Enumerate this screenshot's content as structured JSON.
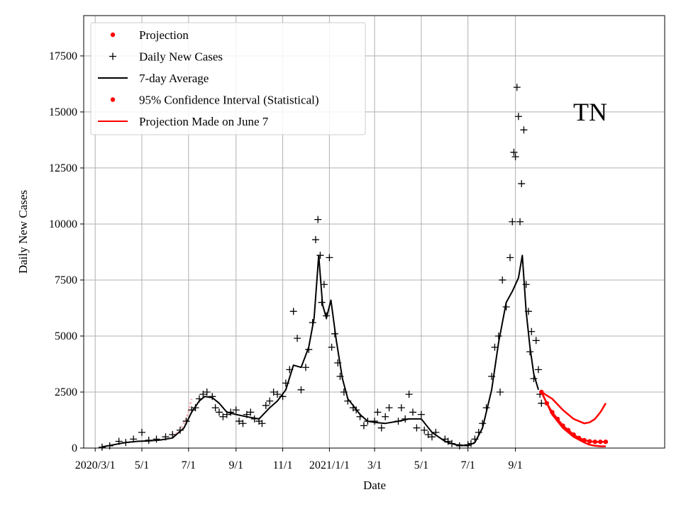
{
  "chart_data": {
    "type": "scatter",
    "panel_label": "TN",
    "xlabel": "Date",
    "ylabel": "Daily New Cases",
    "grid": true,
    "legend_position": "top-left",
    "xlim": [
      "2020-02-15",
      "2022-03-15"
    ],
    "ylim": [
      0,
      19300
    ],
    "x_ticks": [
      {
        "date": "2020-03-01",
        "label": "2020/3/1"
      },
      {
        "date": "2020-05-01",
        "label": "5/1"
      },
      {
        "date": "2020-07-01",
        "label": "7/1"
      },
      {
        "date": "2020-09-01",
        "label": "9/1"
      },
      {
        "date": "2020-11-01",
        "label": "11/1"
      },
      {
        "date": "2021-01-01",
        "label": "2021/1/1"
      },
      {
        "date": "2021-03-01",
        "label": "3/1"
      },
      {
        "date": "2021-05-01",
        "label": "5/1"
      },
      {
        "date": "2021-07-01",
        "label": "7/1"
      },
      {
        "date": "2021-09-01",
        "label": "9/1"
      }
    ],
    "y_ticks": [
      {
        "value": 0,
        "label": "0"
      },
      {
        "value": 2500,
        "label": "2500"
      },
      {
        "value": 5000,
        "label": "5000"
      },
      {
        "value": 7500,
        "label": "7500"
      },
      {
        "value": 10000,
        "label": "10000"
      },
      {
        "value": 12500,
        "label": "12500"
      },
      {
        "value": 15000,
        "label": "15000"
      },
      {
        "value": 17500,
        "label": "17500"
      }
    ],
    "legend": [
      {
        "label": "Projection",
        "marker": "dot",
        "color": "#ff0000"
      },
      {
        "label": "Daily New Cases",
        "marker": "plus",
        "color": "#000000"
      },
      {
        "label": "7-day Average",
        "marker": "line",
        "color": "#000000"
      },
      {
        "label": "95% Confidence Interval (Statistical)",
        "marker": "dot",
        "color": "#ff0000"
      },
      {
        "label": "Projection Made on June 7",
        "marker": "line",
        "color": "#ff0000"
      }
    ],
    "colors": {
      "cases": "#000000",
      "average": "#000000",
      "projection": "#ff0000",
      "early_projection": "#f4b6b6",
      "grid": "#b0b0b0"
    },
    "seven_day_average": {
      "dates": [
        "2020-03-10",
        "2020-03-25",
        "2020-04-10",
        "2020-04-25",
        "2020-05-10",
        "2020-05-25",
        "2020-06-10",
        "2020-06-25",
        "2020-07-05",
        "2020-07-15",
        "2020-07-22",
        "2020-08-01",
        "2020-08-10",
        "2020-08-20",
        "2020-09-01",
        "2020-09-15",
        "2020-10-01",
        "2020-10-15",
        "2020-10-25",
        "2020-11-05",
        "2020-11-15",
        "2020-11-25",
        "2020-12-05",
        "2020-12-12",
        "2020-12-18",
        "2020-12-23",
        "2020-12-28",
        "2021-01-03",
        "2021-01-10",
        "2021-01-18",
        "2021-01-25",
        "2021-02-01",
        "2021-02-10",
        "2021-02-20",
        "2021-03-01",
        "2021-03-15",
        "2021-04-01",
        "2021-04-15",
        "2021-05-01",
        "2021-05-15",
        "2021-06-01",
        "2021-06-15",
        "2021-07-01",
        "2021-07-10",
        "2021-07-20",
        "2021-08-01",
        "2021-08-10",
        "2021-08-20",
        "2021-08-28",
        "2021-09-05",
        "2021-09-10",
        "2021-09-15",
        "2021-09-20",
        "2021-09-25",
        "2021-10-01"
      ],
      "values": [
        50,
        150,
        250,
        300,
        320,
        360,
        450,
        900,
        1600,
        2100,
        2300,
        2250,
        2000,
        1600,
        1500,
        1400,
        1300,
        1800,
        2100,
        2600,
        3700,
        3600,
        4500,
        5800,
        8600,
        6400,
        5800,
        6600,
        4800,
        3100,
        2200,
        1900,
        1500,
        1200,
        1150,
        1100,
        1200,
        1300,
        1300,
        700,
        300,
        150,
        100,
        250,
        900,
        2600,
        4700,
        6500,
        7000,
        7600,
        8600,
        6100,
        4500,
        3300,
        2600
      ]
    },
    "daily_new_cases": {
      "dates": [
        "2020-03-10",
        "2020-03-20",
        "2020-04-01",
        "2020-04-10",
        "2020-04-20",
        "2020-05-01",
        "2020-05-10",
        "2020-05-20",
        "2020-06-01",
        "2020-06-10",
        "2020-06-20",
        "2020-06-28",
        "2020-07-05",
        "2020-07-10",
        "2020-07-15",
        "2020-07-20",
        "2020-07-25",
        "2020-08-01",
        "2020-08-05",
        "2020-08-10",
        "2020-08-15",
        "2020-08-20",
        "2020-08-25",
        "2020-09-01",
        "2020-09-05",
        "2020-09-10",
        "2020-09-15",
        "2020-09-20",
        "2020-09-25",
        "2020-10-01",
        "2020-10-05",
        "2020-10-10",
        "2020-10-15",
        "2020-10-20",
        "2020-10-25",
        "2020-11-01",
        "2020-11-05",
        "2020-11-10",
        "2020-11-15",
        "2020-11-20",
        "2020-11-25",
        "2020-12-01",
        "2020-12-05",
        "2020-12-10",
        "2020-12-14",
        "2020-12-17",
        "2020-12-20",
        "2020-12-22",
        "2020-12-25",
        "2020-12-28",
        "2021-01-01",
        "2021-01-04",
        "2021-01-08",
        "2021-01-12",
        "2021-01-15",
        "2021-01-20",
        "2021-01-25",
        "2021-02-01",
        "2021-02-05",
        "2021-02-10",
        "2021-02-15",
        "2021-02-20",
        "2021-03-01",
        "2021-03-05",
        "2021-03-10",
        "2021-03-15",
        "2021-03-20",
        "2021-04-01",
        "2021-04-05",
        "2021-04-10",
        "2021-04-15",
        "2021-04-20",
        "2021-04-25",
        "2021-05-01",
        "2021-05-05",
        "2021-05-10",
        "2021-05-15",
        "2021-05-20",
        "2021-06-01",
        "2021-06-05",
        "2021-06-10",
        "2021-06-20",
        "2021-07-01",
        "2021-07-05",
        "2021-07-10",
        "2021-07-15",
        "2021-07-20",
        "2021-07-25",
        "2021-08-01",
        "2021-08-05",
        "2021-08-10",
        "2021-08-12",
        "2021-08-15",
        "2021-08-20",
        "2021-08-25",
        "2021-08-28",
        "2021-08-30",
        "2021-09-01",
        "2021-09-03",
        "2021-09-05",
        "2021-09-07",
        "2021-09-09",
        "2021-09-12",
        "2021-09-15",
        "2021-09-18",
        "2021-09-20",
        "2021-09-22",
        "2021-09-25",
        "2021-09-28",
        "2021-10-01",
        "2021-10-03",
        "2021-10-05"
      ],
      "values": [
        40,
        100,
        300,
        250,
        400,
        700,
        350,
        400,
        500,
        600,
        800,
        1200,
        1700,
        1800,
        2200,
        2400,
        2500,
        2300,
        1800,
        1600,
        1400,
        1500,
        1600,
        1700,
        1200,
        1100,
        1500,
        1600,
        1300,
        1200,
        1100,
        1900,
        2100,
        2500,
        2400,
        2300,
        2900,
        3500,
        6100,
        4900,
        2600,
        3600,
        4400,
        5600,
        9300,
        10200,
        8600,
        6500,
        7300,
        5900,
        8500,
        4500,
        5100,
        3800,
        3200,
        2500,
        2100,
        1800,
        1700,
        1400,
        1000,
        1200,
        1200,
        1600,
        900,
        1400,
        1800,
        1200,
        1800,
        1300,
        2400,
        1600,
        900,
        1500,
        800,
        600,
        500,
        700,
        400,
        300,
        200,
        100,
        150,
        200,
        400,
        700,
        1100,
        1800,
        3200,
        4500,
        5000,
        2500,
        7500,
        6300,
        8500,
        10100,
        13200,
        13000,
        16100,
        14800,
        10100,
        11800,
        14200,
        7300,
        6100,
        4300,
        5200,
        3100,
        4800,
        3500,
        2400,
        2000
      ]
    },
    "projection_june7": {
      "dates": [
        "2021-10-05",
        "2021-10-12",
        "2021-10-19",
        "2021-10-26",
        "2021-11-02",
        "2021-11-09",
        "2021-11-16",
        "2021-11-23",
        "2021-11-30",
        "2021-12-07",
        "2021-12-14",
        "2021-12-21",
        "2021-12-28"
      ],
      "values": [
        2500,
        2000,
        1600,
        1300,
        1000,
        800,
        600,
        450,
        350,
        300,
        280,
        280,
        280
      ]
    },
    "confidence_interval_upper": {
      "dates": [
        "2021-10-05",
        "2021-10-19",
        "2021-11-02",
        "2021-11-16",
        "2021-11-30",
        "2021-12-07",
        "2021-12-14",
        "2021-12-21",
        "2021-12-28"
      ],
      "values": [
        2500,
        2200,
        1700,
        1300,
        1100,
        1150,
        1300,
        1600,
        2000
      ]
    },
    "confidence_interval_lower": {
      "dates": [
        "2021-10-05",
        "2021-10-19",
        "2021-11-02",
        "2021-11-16",
        "2021-11-30",
        "2021-12-07",
        "2021-12-14",
        "2021-12-21",
        "2021-12-28"
      ],
      "values": [
        2500,
        1500,
        900,
        500,
        250,
        150,
        100,
        80,
        80
      ]
    },
    "early_projection": {
      "dates": [
        "2020-06-10",
        "2020-06-15",
        "2020-06-20",
        "2020-06-25",
        "2020-06-30",
        "2020-07-05"
      ],
      "values": [
        500,
        650,
        800,
        1100,
        1500,
        2200
      ]
    }
  }
}
